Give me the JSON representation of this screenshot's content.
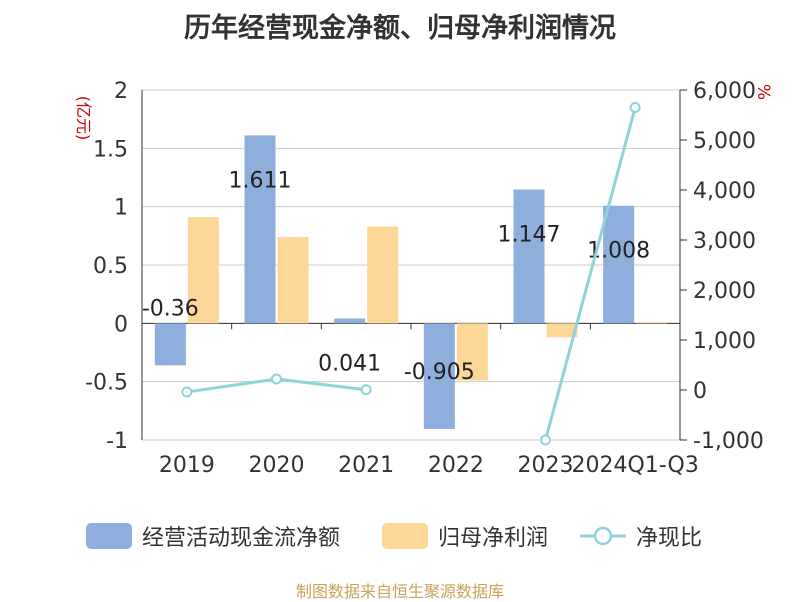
{
  "chart_data": {
    "type": "bar",
    "title": "历年经营现金净额、归母净利润情况",
    "categories": [
      "2019",
      "2020",
      "2021",
      "2022",
      "2023",
      "2024Q1-Q3"
    ],
    "series": [
      {
        "name": "经营活动现金流净额",
        "type": "bar",
        "axis": "left",
        "color": "#8eaedb",
        "values": [
          -0.36,
          1.611,
          0.041,
          -0.905,
          1.147,
          1.008
        ],
        "labels": [
          "-0.36",
          "1.611",
          "0.041",
          "-0.905",
          "1.147",
          "1.008"
        ]
      },
      {
        "name": "归母净利润",
        "type": "bar",
        "axis": "left",
        "color": "#fcd798",
        "values": [
          0.91,
          0.74,
          0.83,
          -0.49,
          -0.12,
          0.01
        ]
      },
      {
        "name": "净现比",
        "type": "line",
        "axis": "right",
        "color": "#8fd3d8",
        "values": [
          -40,
          220,
          5,
          null,
          -1000,
          5650
        ]
      }
    ],
    "y_left": {
      "unit": "(亿元)",
      "min": -1,
      "max": 2,
      "ticks": [
        "-1",
        "-0.5",
        "0",
        "0.5",
        "1",
        "1.5",
        "2"
      ]
    },
    "y_right": {
      "unit": "%",
      "min": -1000,
      "max": 6000,
      "ticks": [
        "-1,000",
        "0",
        "1,000",
        "2,000",
        "3,000",
        "4,000",
        "5,000",
        "6,000"
      ]
    },
    "grid": true,
    "legend_position": "bottom"
  },
  "source": "制图数据来自恒生聚源数据库"
}
